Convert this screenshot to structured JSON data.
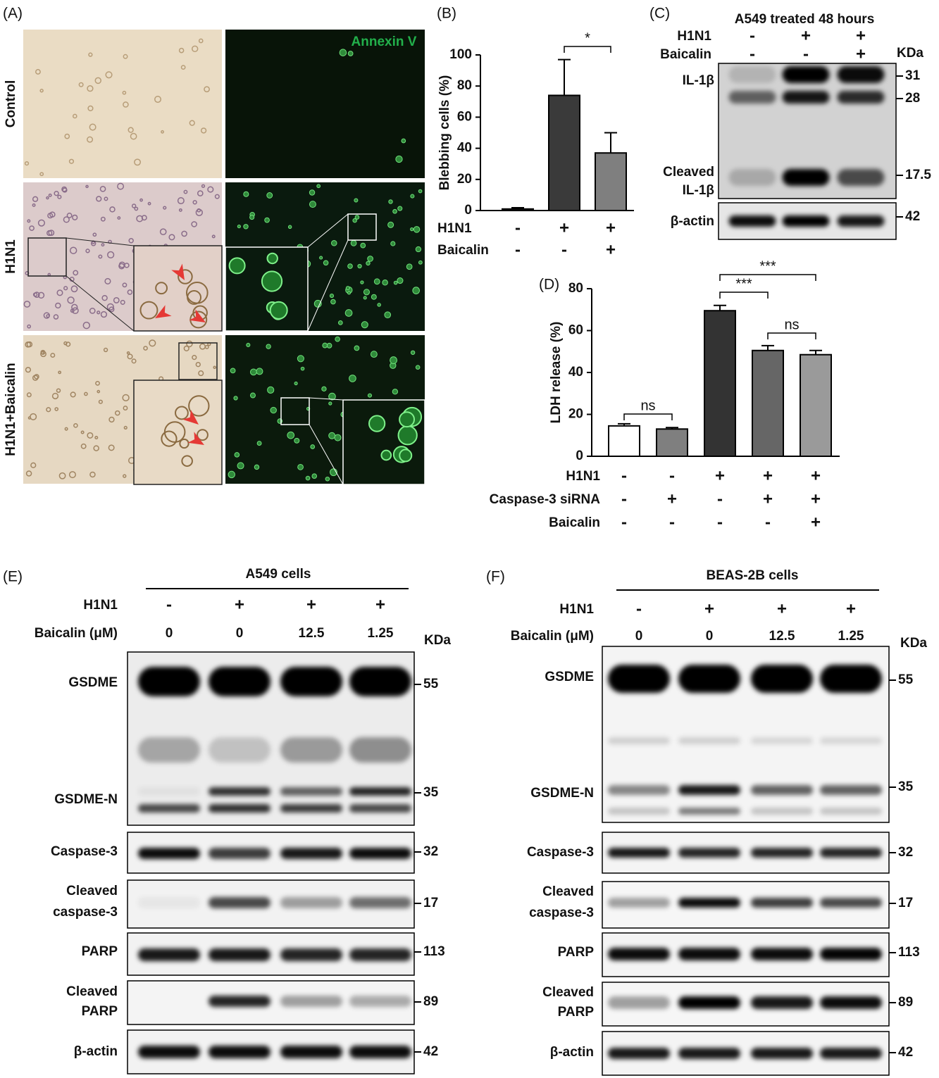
{
  "panels": {
    "A": {
      "label": "(A)",
      "row_labels": [
        "Control",
        "H1N1",
        "H1N1+Baicalin"
      ],
      "stain": "Annexin V"
    },
    "C": {
      "label": "(C)",
      "title": "A549 treated 48 hours",
      "conditions": [
        {
          "name": "H1N1",
          "marks": [
            "-",
            "+",
            "+"
          ]
        },
        {
          "name": "Baicalin",
          "marks": [
            "-",
            "-",
            "+"
          ]
        }
      ],
      "unit": "KDa",
      "blots": [
        {
          "names": [
            [
              "IL-1β"
            ],
            [
              "Cleaved",
              "IL-1β"
            ]
          ],
          "markers": [
            "31",
            "28",
            "17.5"
          ]
        },
        {
          "names": [
            [
              "β-actin"
            ]
          ],
          "markers": [
            "42"
          ]
        }
      ]
    },
    "E": {
      "label": "(E)",
      "title": "A549 cells",
      "conditions": [
        {
          "name": "H1N1",
          "marks": [
            "-",
            "+",
            "+",
            "+"
          ]
        },
        {
          "name": "Baicalin (μM)",
          "marks": [
            "0",
            "0",
            "12.5",
            "1.25"
          ]
        }
      ],
      "unit": "KDa",
      "blots": [
        {
          "names": [
            [
              "GSDME"
            ],
            [
              "GSDME-N"
            ]
          ],
          "markers": [
            "55",
            "35"
          ]
        },
        {
          "names": [
            [
              "Caspase-3"
            ]
          ],
          "markers": [
            "32"
          ]
        },
        {
          "names": [
            [
              "Cleaved",
              "caspase-3"
            ]
          ],
          "markers": [
            "17"
          ]
        },
        {
          "names": [
            [
              "PARP"
            ]
          ],
          "markers": [
            "113"
          ]
        },
        {
          "names": [
            [
              "Cleaved",
              "PARP"
            ]
          ],
          "markers": [
            "89"
          ]
        },
        {
          "names": [
            [
              "β-actin"
            ]
          ],
          "markers": [
            "42"
          ]
        }
      ]
    },
    "F": {
      "label": "(F)",
      "title": "BEAS-2B cells",
      "conditions": [
        {
          "name": "H1N1",
          "marks": [
            "-",
            "+",
            "+",
            "+"
          ]
        },
        {
          "name": "Baicalin (μM)",
          "marks": [
            "0",
            "0",
            "12.5",
            "1.25"
          ]
        }
      ],
      "unit": "KDa",
      "blots": [
        {
          "names": [
            [
              "GSDME"
            ],
            [
              "GSDME-N"
            ]
          ],
          "markers": [
            "55",
            "35"
          ]
        },
        {
          "names": [
            [
              "Caspase-3"
            ]
          ],
          "markers": [
            "32"
          ]
        },
        {
          "names": [
            [
              "Cleaved",
              "caspase-3"
            ]
          ],
          "markers": [
            "17"
          ]
        },
        {
          "names": [
            [
              "PARP"
            ]
          ],
          "markers": [
            "113"
          ]
        },
        {
          "names": [
            [
              "Cleaved",
              "PARP"
            ]
          ],
          "markers": [
            "89"
          ]
        },
        {
          "names": [
            [
              "β-actin"
            ]
          ],
          "markers": [
            "42"
          ]
        }
      ]
    }
  },
  "chart_data": [
    {
      "type": "bar",
      "panel_label": "(B)",
      "y_label": "Blebbing cells (%)",
      "categories": [
        null,
        null,
        null
      ],
      "values": [
        1,
        74,
        37
      ],
      "errors": [
        0.8,
        23,
        13
      ],
      "colors": [
        "#3a3a3a",
        "#3a3a3a",
        "#7f7f7f"
      ],
      "ylim": [
        0,
        100
      ],
      "yticks": [
        0,
        20,
        40,
        60,
        80,
        100
      ],
      "conditions": [
        {
          "name": "H1N1",
          "marks": [
            "-",
            "+",
            "+"
          ]
        },
        {
          "name": "Baicalin",
          "marks": [
            "-",
            "-",
            "+"
          ]
        }
      ],
      "significance": [
        {
          "from": 1,
          "to": 2,
          "label": "*"
        }
      ]
    },
    {
      "type": "bar",
      "panel_label": "(D)",
      "y_label": "LDH release (%)",
      "categories": [
        null,
        null,
        null,
        null,
        null
      ],
      "values": [
        14.5,
        13,
        69.5,
        50.5,
        48.5
      ],
      "errors": [
        1,
        0.7,
        2.5,
        2.3,
        2
      ],
      "colors": [
        "#ffffff",
        "#7f7f7f",
        "#333333",
        "#666666",
        "#9a9a9a"
      ],
      "ylim": [
        0,
        80
      ],
      "yticks": [
        0,
        20,
        40,
        60,
        80
      ],
      "conditions": [
        {
          "name": "H1N1",
          "marks": [
            "-",
            "-",
            "+",
            "+",
            "+"
          ]
        },
        {
          "name": "Caspase-3 siRNA",
          "marks": [
            "-",
            "+",
            "-",
            "+",
            "+"
          ]
        },
        {
          "name": "Baicalin",
          "marks": [
            "-",
            "-",
            "-",
            "-",
            "+"
          ]
        }
      ],
      "significance": [
        {
          "from": 0,
          "to": 1,
          "label": "ns"
        },
        {
          "from": 2,
          "to": 3,
          "label": "***"
        },
        {
          "from": 2,
          "to": 4,
          "label": "***"
        },
        {
          "from": 3,
          "to": 4,
          "label": "ns"
        }
      ]
    }
  ]
}
